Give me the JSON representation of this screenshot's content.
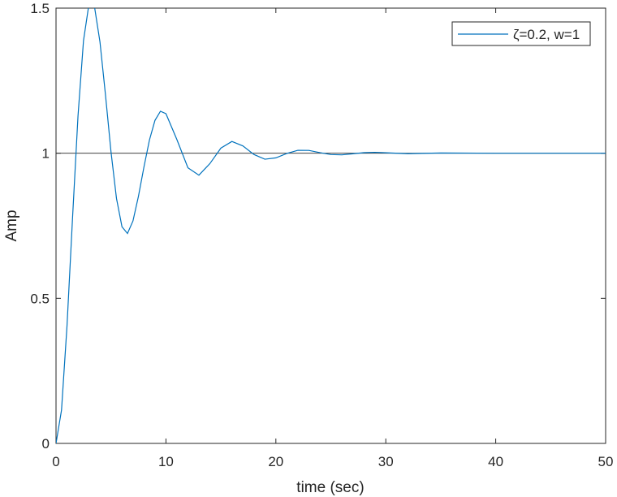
{
  "chart_data": {
    "type": "line",
    "xlabel": "time (sec)",
    "ylabel": "Amp",
    "x": [
      0,
      0.5,
      1,
      1.5,
      2,
      2.5,
      3,
      3.5,
      4,
      4.5,
      5,
      5.5,
      6,
      6.5,
      7,
      7.5,
      8,
      8.5,
      9,
      9.5,
      10,
      11,
      12,
      13,
      14,
      15,
      16,
      17,
      18,
      19,
      20,
      21,
      22,
      23,
      24,
      25,
      26,
      27,
      28,
      29,
      30,
      32,
      35,
      40,
      45,
      50
    ],
    "series": [
      {
        "name": "ζ=0.2, w=1",
        "color": "#0072bd",
        "values": [
          0,
          0.1147,
          0.4052,
          0.7747,
          1.1282,
          1.3877,
          1.5151,
          1.5048,
          1.3831,
          1.2009,
          1.0055,
          0.8445,
          0.7465,
          0.7234,
          0.7665,
          0.8519,
          0.9527,
          1.0456,
          1.113,
          1.1447,
          1.1362,
          1.0467,
          0.9497,
          0.9243,
          0.9643,
          1.0176,
          1.0405,
          1.0251,
          0.9957,
          0.9793,
          0.984,
          0.9993,
          1.0101,
          1.0097,
          1.0021,
          0.9954,
          0.9944,
          0.998,
          1.0019,
          1.0031,
          1.0015,
          0.9984,
          1.0008,
          1,
          1,
          1
        ]
      }
    ],
    "reference_line": 1,
    "xlim": [
      0,
      50
    ],
    "xticks": [
      0,
      10,
      20,
      30,
      40,
      50
    ],
    "ylim": [
      0,
      1.5
    ],
    "yticks": [
      0,
      0.5,
      1,
      1.5
    ],
    "legend": "upper right"
  }
}
